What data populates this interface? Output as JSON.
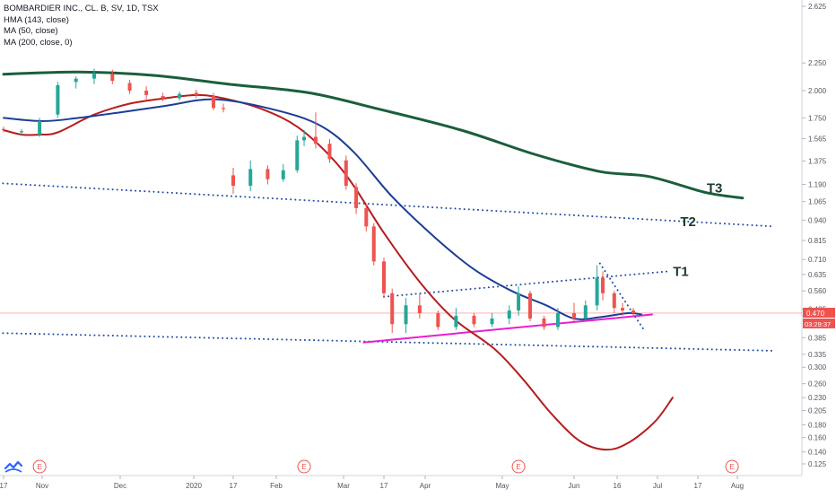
{
  "header": {
    "symbol_line": "BOMBARDIER INC., CL. B, SV, 1D, TSX",
    "indicators": [
      "HMA (143, close)",
      "MA (50, close)",
      "MA (200, close, 0)"
    ]
  },
  "chart_data": {
    "type": "candlestick",
    "title": "BOMBARDIER INC., CL. B, SV, 1D, TSX",
    "x_tick_labels": [
      "17",
      "Nov",
      "Dec",
      "2020",
      "17",
      "Feb",
      "Mar",
      "17",
      "Apr",
      "May",
      "Jun",
      "16",
      "Jul",
      "17",
      "Aug"
    ],
    "x_tick_dates": [
      "2019-10-17",
      "2019-11-01",
      "2019-12-01",
      "2020-01-01",
      "2020-01-17",
      "2020-02-01",
      "2020-03-01",
      "2020-03-17",
      "2020-04-01",
      "2020-05-01",
      "2020-06-01",
      "2020-06-16",
      "2020-07-01",
      "2020-07-17",
      "2020-08-01"
    ],
    "y_tick_labels": [
      "2.625",
      "2.250",
      "2.000",
      "1.750",
      "1.565",
      "1.375",
      "1.190",
      "1.065",
      "0.940",
      "0.815",
      "0.710",
      "0.635",
      "0.560",
      "0.485",
      "0.385",
      "0.335",
      "0.300",
      "0.260",
      "0.230",
      "0.205",
      "0.180",
      "0.160",
      "0.140",
      "0.125"
    ],
    "y_tick_values": [
      2.625,
      2.25,
      2.0,
      1.75,
      1.565,
      1.375,
      1.19,
      1.065,
      0.94,
      0.815,
      0.71,
      0.635,
      0.56,
      0.485,
      0.385,
      0.335,
      0.3,
      0.26,
      0.23,
      0.205,
      0.18,
      0.16,
      0.14,
      0.125
    ],
    "price_scale": "log",
    "last_price": {
      "value": 0.47,
      "label": "0.470",
      "countdown": "03:29:37",
      "color": "#ef5350"
    },
    "candles": [
      {
        "date": "2019-10-17",
        "open": 1.65,
        "high": 1.67,
        "low": 1.62,
        "close": 1.64
      },
      {
        "date": "2019-10-24",
        "open": 1.62,
        "high": 1.65,
        "low": 1.59,
        "close": 1.63
      },
      {
        "date": "2019-10-31",
        "open": 1.6,
        "high": 1.75,
        "low": 1.58,
        "close": 1.72
      },
      {
        "date": "2019-11-07",
        "open": 1.78,
        "high": 2.08,
        "low": 1.75,
        "close": 2.05
      },
      {
        "date": "2019-11-14",
        "open": 2.08,
        "high": 2.13,
        "low": 2.02,
        "close": 2.11
      },
      {
        "date": "2019-11-21",
        "open": 2.11,
        "high": 2.2,
        "low": 2.06,
        "close": 2.16
      },
      {
        "date": "2019-11-28",
        "open": 2.15,
        "high": 2.19,
        "low": 2.06,
        "close": 2.09
      },
      {
        "date": "2019-12-05",
        "open": 2.07,
        "high": 2.1,
        "low": 1.97,
        "close": 2.0
      },
      {
        "date": "2019-12-12",
        "open": 2.0,
        "high": 2.04,
        "low": 1.92,
        "close": 1.96
      },
      {
        "date": "2019-12-19",
        "open": 1.95,
        "high": 1.98,
        "low": 1.9,
        "close": 1.93
      },
      {
        "date": "2019-12-26",
        "open": 1.93,
        "high": 1.99,
        "low": 1.91,
        "close": 1.97
      },
      {
        "date": "2020-01-02",
        "open": 1.98,
        "high": 2.01,
        "low": 1.93,
        "close": 1.96
      },
      {
        "date": "2020-01-09",
        "open": 1.95,
        "high": 1.98,
        "low": 1.82,
        "close": 1.84
      },
      {
        "date": "2020-01-13",
        "open": 1.84,
        "high": 1.88,
        "low": 1.8,
        "close": 1.83
      },
      {
        "date": "2020-01-17",
        "open": 1.26,
        "high": 1.32,
        "low": 1.12,
        "close": 1.18
      },
      {
        "date": "2020-01-23",
        "open": 1.18,
        "high": 1.38,
        "low": 1.14,
        "close": 1.31
      },
      {
        "date": "2020-01-29",
        "open": 1.31,
        "high": 1.34,
        "low": 1.19,
        "close": 1.23
      },
      {
        "date": "2020-02-04",
        "open": 1.23,
        "high": 1.35,
        "low": 1.21,
        "close": 1.3
      },
      {
        "date": "2020-02-10",
        "open": 1.3,
        "high": 1.59,
        "low": 1.28,
        "close": 1.55
      },
      {
        "date": "2020-02-13",
        "open": 1.55,
        "high": 1.64,
        "low": 1.5,
        "close": 1.58
      },
      {
        "date": "2020-02-18",
        "open": 1.58,
        "high": 1.8,
        "low": 1.48,
        "close": 1.52
      },
      {
        "date": "2020-02-24",
        "open": 1.52,
        "high": 1.56,
        "low": 1.36,
        "close": 1.39
      },
      {
        "date": "2020-03-02",
        "open": 1.38,
        "high": 1.42,
        "low": 1.15,
        "close": 1.18
      },
      {
        "date": "2020-03-06",
        "open": 1.17,
        "high": 1.2,
        "low": 0.98,
        "close": 1.02
      },
      {
        "date": "2020-03-10",
        "open": 1.02,
        "high": 1.05,
        "low": 0.87,
        "close": 0.9
      },
      {
        "date": "2020-03-13",
        "open": 0.9,
        "high": 0.92,
        "low": 0.68,
        "close": 0.7
      },
      {
        "date": "2020-03-17",
        "open": 0.7,
        "high": 0.72,
        "low": 0.53,
        "close": 0.55
      },
      {
        "date": "2020-03-20",
        "open": 0.55,
        "high": 0.57,
        "low": 0.4,
        "close": 0.43
      },
      {
        "date": "2020-03-25",
        "open": 0.43,
        "high": 0.53,
        "low": 0.4,
        "close": 0.5
      },
      {
        "date": "2020-03-30",
        "open": 0.5,
        "high": 0.55,
        "low": 0.45,
        "close": 0.47
      },
      {
        "date": "2020-04-06",
        "open": 0.47,
        "high": 0.48,
        "low": 0.41,
        "close": 0.42
      },
      {
        "date": "2020-04-13",
        "open": 0.42,
        "high": 0.49,
        "low": 0.41,
        "close": 0.46
      },
      {
        "date": "2020-04-20",
        "open": 0.46,
        "high": 0.47,
        "low": 0.42,
        "close": 0.43
      },
      {
        "date": "2020-04-27",
        "open": 0.43,
        "high": 0.47,
        "low": 0.42,
        "close": 0.45
      },
      {
        "date": "2020-05-04",
        "open": 0.45,
        "high": 0.5,
        "low": 0.43,
        "close": 0.48
      },
      {
        "date": "2020-05-08",
        "open": 0.48,
        "high": 0.58,
        "low": 0.46,
        "close": 0.55
      },
      {
        "date": "2020-05-13",
        "open": 0.55,
        "high": 0.56,
        "low": 0.44,
        "close": 0.45
      },
      {
        "date": "2020-05-19",
        "open": 0.45,
        "high": 0.46,
        "low": 0.41,
        "close": 0.42
      },
      {
        "date": "2020-05-25",
        "open": 0.42,
        "high": 0.49,
        "low": 0.41,
        "close": 0.47
      },
      {
        "date": "2020-06-01",
        "open": 0.47,
        "high": 0.51,
        "low": 0.44,
        "close": 0.45
      },
      {
        "date": "2020-06-05",
        "open": 0.45,
        "high": 0.52,
        "low": 0.44,
        "close": 0.5
      },
      {
        "date": "2020-06-09",
        "open": 0.5,
        "high": 0.68,
        "low": 0.48,
        "close": 0.62
      },
      {
        "date": "2020-06-11",
        "open": 0.62,
        "high": 0.65,
        "low": 0.52,
        "close": 0.55
      },
      {
        "date": "2020-06-15",
        "open": 0.55,
        "high": 0.56,
        "low": 0.47,
        "close": 0.49
      },
      {
        "date": "2020-06-18",
        "open": 0.49,
        "high": 0.51,
        "low": 0.46,
        "close": 0.48
      },
      {
        "date": "2020-06-22",
        "open": 0.48,
        "high": 0.49,
        "low": 0.46,
        "close": 0.47
      }
    ],
    "lines": [
      {
        "indicator": "HMA (143, close)",
        "color": "#b71c1c",
        "points": [
          [
            "2019-10-17",
            1.64
          ],
          [
            "2019-10-24",
            1.6
          ],
          [
            "2019-10-31",
            1.6
          ],
          [
            "2019-11-07",
            1.62
          ],
          [
            "2019-11-21",
            1.78
          ],
          [
            "2019-12-05",
            1.88
          ],
          [
            "2019-12-20",
            1.93
          ],
          [
            "2020-01-03",
            1.96
          ],
          [
            "2020-01-15",
            1.92
          ],
          [
            "2020-01-28",
            1.82
          ],
          [
            "2020-02-10",
            1.67
          ],
          [
            "2020-02-24",
            1.42
          ],
          [
            "2020-03-05",
            1.18
          ],
          [
            "2020-03-17",
            0.86
          ],
          [
            "2020-03-30",
            0.6
          ],
          [
            "2020-04-12",
            0.45
          ],
          [
            "2020-04-28",
            0.35
          ],
          [
            "2020-05-10",
            0.27
          ],
          [
            "2020-05-22",
            0.2
          ],
          [
            "2020-06-03",
            0.155
          ],
          [
            "2020-06-12",
            0.143
          ],
          [
            "2020-06-20",
            0.152
          ],
          [
            "2020-06-30",
            0.185
          ],
          [
            "2020-07-07",
            0.23
          ]
        ]
      },
      {
        "indicator": "MA (50, close)",
        "color": "#1a3e96",
        "points": [
          [
            "2019-10-17",
            1.75
          ],
          [
            "2019-11-01",
            1.72
          ],
          [
            "2019-11-15",
            1.75
          ],
          [
            "2019-12-01",
            1.8
          ],
          [
            "2019-12-20",
            1.86
          ],
          [
            "2020-01-10",
            1.92
          ],
          [
            "2020-02-01",
            1.82
          ],
          [
            "2020-02-20",
            1.68
          ],
          [
            "2020-03-05",
            1.45
          ],
          [
            "2020-03-20",
            1.1
          ],
          [
            "2020-04-05",
            0.83
          ],
          [
            "2020-04-20",
            0.66
          ],
          [
            "2020-05-05",
            0.56
          ],
          [
            "2020-05-20",
            0.5
          ],
          [
            "2020-06-01",
            0.45
          ],
          [
            "2020-06-10",
            0.455
          ],
          [
            "2020-06-20",
            0.47
          ],
          [
            "2020-06-25",
            0.465
          ]
        ]
      },
      {
        "indicator": "MA (200, close, 0)",
        "color": "#1b5e3b",
        "points": [
          [
            "2019-10-17",
            2.15
          ],
          [
            "2019-11-15",
            2.17
          ],
          [
            "2019-12-15",
            2.14
          ],
          [
            "2020-01-15",
            2.06
          ],
          [
            "2020-02-15",
            1.98
          ],
          [
            "2020-03-15",
            1.83
          ],
          [
            "2020-04-15",
            1.64
          ],
          [
            "2020-05-15",
            1.43
          ],
          [
            "2020-06-10",
            1.29
          ],
          [
            "2020-06-28",
            1.25
          ],
          [
            "2020-07-20",
            1.13
          ],
          [
            "2020-08-03",
            1.09
          ]
        ]
      }
    ],
    "annotations": [
      {
        "label": "T1",
        "kind": "dotted-trendline",
        "color": "#1f4fa8",
        "from": [
          "2020-03-17",
          0.535
        ],
        "to": [
          "2020-07-05",
          0.65
        ]
      },
      {
        "label": "T2",
        "kind": "dotted-trendline",
        "color": "#1f4fa8",
        "from": [
          "2019-10-15",
          1.2
        ],
        "to": [
          "2020-08-15",
          0.9
        ]
      },
      {
        "label": "T3",
        "kind": "ma200",
        "color": "#1b5e3b",
        "from": [
          "2020-07-05",
          1.22
        ],
        "to": [
          "2020-08-03",
          1.09
        ]
      },
      {
        "label": "",
        "kind": "dotted-trendline",
        "color": "#1f4fa8",
        "from": [
          "2019-10-15",
          0.4
        ],
        "to": [
          "2020-08-15",
          0.345
        ]
      },
      {
        "label": "",
        "kind": "solid-trendline",
        "color": "#e91ecf",
        "from": [
          "2020-03-09",
          0.37
        ],
        "to": [
          "2020-06-29",
          0.465
        ]
      },
      {
        "label": "",
        "kind": "dotted-trendline",
        "color": "#1f4fa8",
        "from": [
          "2020-06-10",
          0.69
        ],
        "to": [
          "2020-06-26",
          0.41
        ]
      }
    ],
    "earnings_markers": {
      "label": "E",
      "dates": [
        "2019-10-31",
        "2020-02-13",
        "2020-05-08",
        "2020-07-30"
      ]
    },
    "grid": false
  }
}
